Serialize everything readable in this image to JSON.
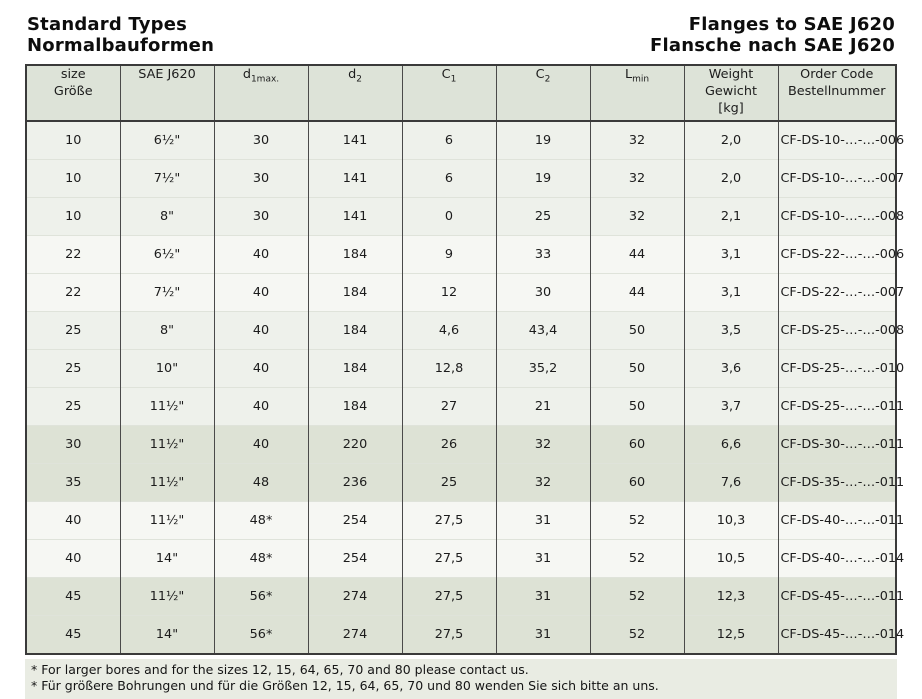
{
  "header": {
    "left_line1": "Standard Types",
    "left_line2": "Normalbauformen",
    "right_line1": "Flanges to SAE J620",
    "right_line2": "Flansche nach SAE J620"
  },
  "colors": {
    "header_bg": "#dde3d8",
    "row_light": "#eef1eb",
    "row_white": "#f6f7f3",
    "row_dark": "#dde2d5",
    "notes_bg": "#e9ece3",
    "row_divider": "#dfe3da",
    "border_dark": "#3a3a3a"
  },
  "table": {
    "columns": [
      {
        "id": "size",
        "lines": [
          "size",
          "Größe"
        ]
      },
      {
        "id": "sae",
        "lines": [
          "SAE J620"
        ]
      },
      {
        "id": "d1max",
        "base": "d",
        "sub": "1max."
      },
      {
        "id": "d2",
        "base": "d",
        "sub": "2"
      },
      {
        "id": "c1",
        "base": "C",
        "sub": "1"
      },
      {
        "id": "c2",
        "base": "C",
        "sub": "2"
      },
      {
        "id": "lmin",
        "base": "L",
        "sub": "min"
      },
      {
        "id": "weight",
        "lines": [
          "Weight",
          "Gewicht",
          "[kg]"
        ]
      },
      {
        "id": "order",
        "lines": [
          "Order Code",
          "Bestellnummer"
        ]
      }
    ],
    "rows": [
      {
        "shade": "light",
        "cells": [
          "10",
          "6½\"",
          "30",
          "141",
          "6",
          "19",
          "32",
          "2,0",
          "CF-DS-10-…-…-006"
        ]
      },
      {
        "shade": "light",
        "cells": [
          "10",
          "7½\"",
          "30",
          "141",
          "6",
          "19",
          "32",
          "2,0",
          "CF-DS-10-…-…-007"
        ]
      },
      {
        "shade": "light",
        "cells": [
          "10",
          "8\"",
          "30",
          "141",
          "0",
          "25",
          "32",
          "2,1",
          "CF-DS-10-…-…-008"
        ]
      },
      {
        "shade": "white",
        "cells": [
          "22",
          "6½\"",
          "40",
          "184",
          "9",
          "33",
          "44",
          "3,1",
          "CF-DS-22-…-…-006"
        ]
      },
      {
        "shade": "white",
        "cells": [
          "22",
          "7½\"",
          "40",
          "184",
          "12",
          "30",
          "44",
          "3,1",
          "CF-DS-22-…-…-007"
        ]
      },
      {
        "shade": "light",
        "cells": [
          "25",
          "8\"",
          "40",
          "184",
          "4,6",
          "43,4",
          "50",
          "3,5",
          "CF-DS-25-…-…-008"
        ]
      },
      {
        "shade": "light",
        "cells": [
          "25",
          "10\"",
          "40",
          "184",
          "12,8",
          "35,2",
          "50",
          "3,6",
          "CF-DS-25-…-…-010"
        ]
      },
      {
        "shade": "light",
        "cells": [
          "25",
          "11½\"",
          "40",
          "184",
          "27",
          "21",
          "50",
          "3,7",
          "CF-DS-25-…-…-011"
        ]
      },
      {
        "shade": "dark",
        "cells": [
          "30",
          "11½\"",
          "40",
          "220",
          "26",
          "32",
          "60",
          "6,6",
          "CF-DS-30-…-…-011"
        ]
      },
      {
        "shade": "dark",
        "cells": [
          "35",
          "11½\"",
          "48",
          "236",
          "25",
          "32",
          "60",
          "7,6",
          "CF-DS-35-…-…-011"
        ]
      },
      {
        "shade": "white",
        "cells": [
          "40",
          "11½\"",
          "48*",
          "254",
          "27,5",
          "31",
          "52",
          "10,3",
          "CF-DS-40-…-…-011"
        ]
      },
      {
        "shade": "white",
        "cells": [
          "40",
          "14\"",
          "48*",
          "254",
          "27,5",
          "31",
          "52",
          "10,5",
          "CF-DS-40-…-…-014"
        ]
      },
      {
        "shade": "dark",
        "cells": [
          "45",
          "11½\"",
          "56*",
          "274",
          "27,5",
          "31",
          "52",
          "12,3",
          "CF-DS-45-…-…-011"
        ]
      },
      {
        "shade": "dark",
        "cells": [
          "45",
          "14\"",
          "56*",
          "274",
          "27,5",
          "31",
          "52",
          "12,5",
          "CF-DS-45-…-…-014"
        ]
      }
    ]
  },
  "notes": [
    "* For larger bores and for the sizes 12, 15, 64, 65, 70 and 80 please contact us.",
    "* Für größere Bohrungen und für die Größen 12, 15, 64, 65, 70 und 80 wenden Sie sich bitte an uns."
  ]
}
